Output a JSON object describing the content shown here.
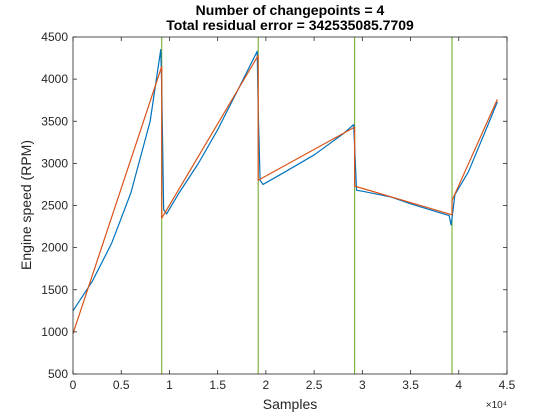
{
  "chart_data": {
    "type": "line",
    "title": "Number of changepoints = 4",
    "subtitle": "Total residual error = 342535085.7709",
    "xlabel": "Samples",
    "ylabel": "Engine speed (RPM)",
    "x_exponent_label": "×10⁴",
    "x_scale": 10000,
    "xlim": [
      0,
      4.5
    ],
    "ylim": [
      500,
      4500
    ],
    "xticks": [
      "0",
      "0.5",
      "1",
      "1.5",
      "2",
      "2.5",
      "3",
      "3.5",
      "4",
      "4.5"
    ],
    "yticks": [
      "500",
      "1000",
      "1500",
      "2000",
      "2500",
      "3000",
      "3500",
      "4000",
      "4500"
    ],
    "grid": false,
    "legend": "none",
    "changepoints": [
      0.92,
      1.92,
      2.92,
      3.93
    ],
    "series": [
      {
        "color": "#0072BD",
        "x": [
          0.0,
          0.2,
          0.4,
          0.6,
          0.8,
          0.91,
          0.92,
          0.94,
          0.97,
          1.1,
          1.3,
          1.5,
          1.7,
          1.91,
          1.92,
          1.94,
          1.97,
          2.2,
          2.5,
          2.8,
          2.91,
          2.92,
          2.94,
          3.0,
          3.3,
          3.5,
          3.7,
          3.9,
          3.92,
          3.93,
          3.96,
          4.1,
          4.3,
          4.4
        ],
        "y": [
          1250,
          1600,
          2050,
          2650,
          3500,
          4350,
          3900,
          2450,
          2400,
          2650,
          3000,
          3400,
          3850,
          4330,
          3650,
          2800,
          2750,
          2900,
          3100,
          3350,
          3460,
          3200,
          2680,
          2670,
          2600,
          2520,
          2450,
          2380,
          2270,
          2350,
          2630,
          2900,
          3450,
          3730
        ]
      },
      {
        "color": "#D95319",
        "x": [
          0.0,
          0.92,
          0.92,
          1.92,
          1.92,
          2.92,
          2.92,
          3.93,
          3.93,
          4.4
        ],
        "y": [
          980,
          4150,
          2350,
          4280,
          2800,
          3430,
          2730,
          2390,
          2560,
          3760
        ]
      }
    ]
  },
  "colors": {
    "changepoint_line": "#77AC30",
    "axis": "#262626"
  }
}
